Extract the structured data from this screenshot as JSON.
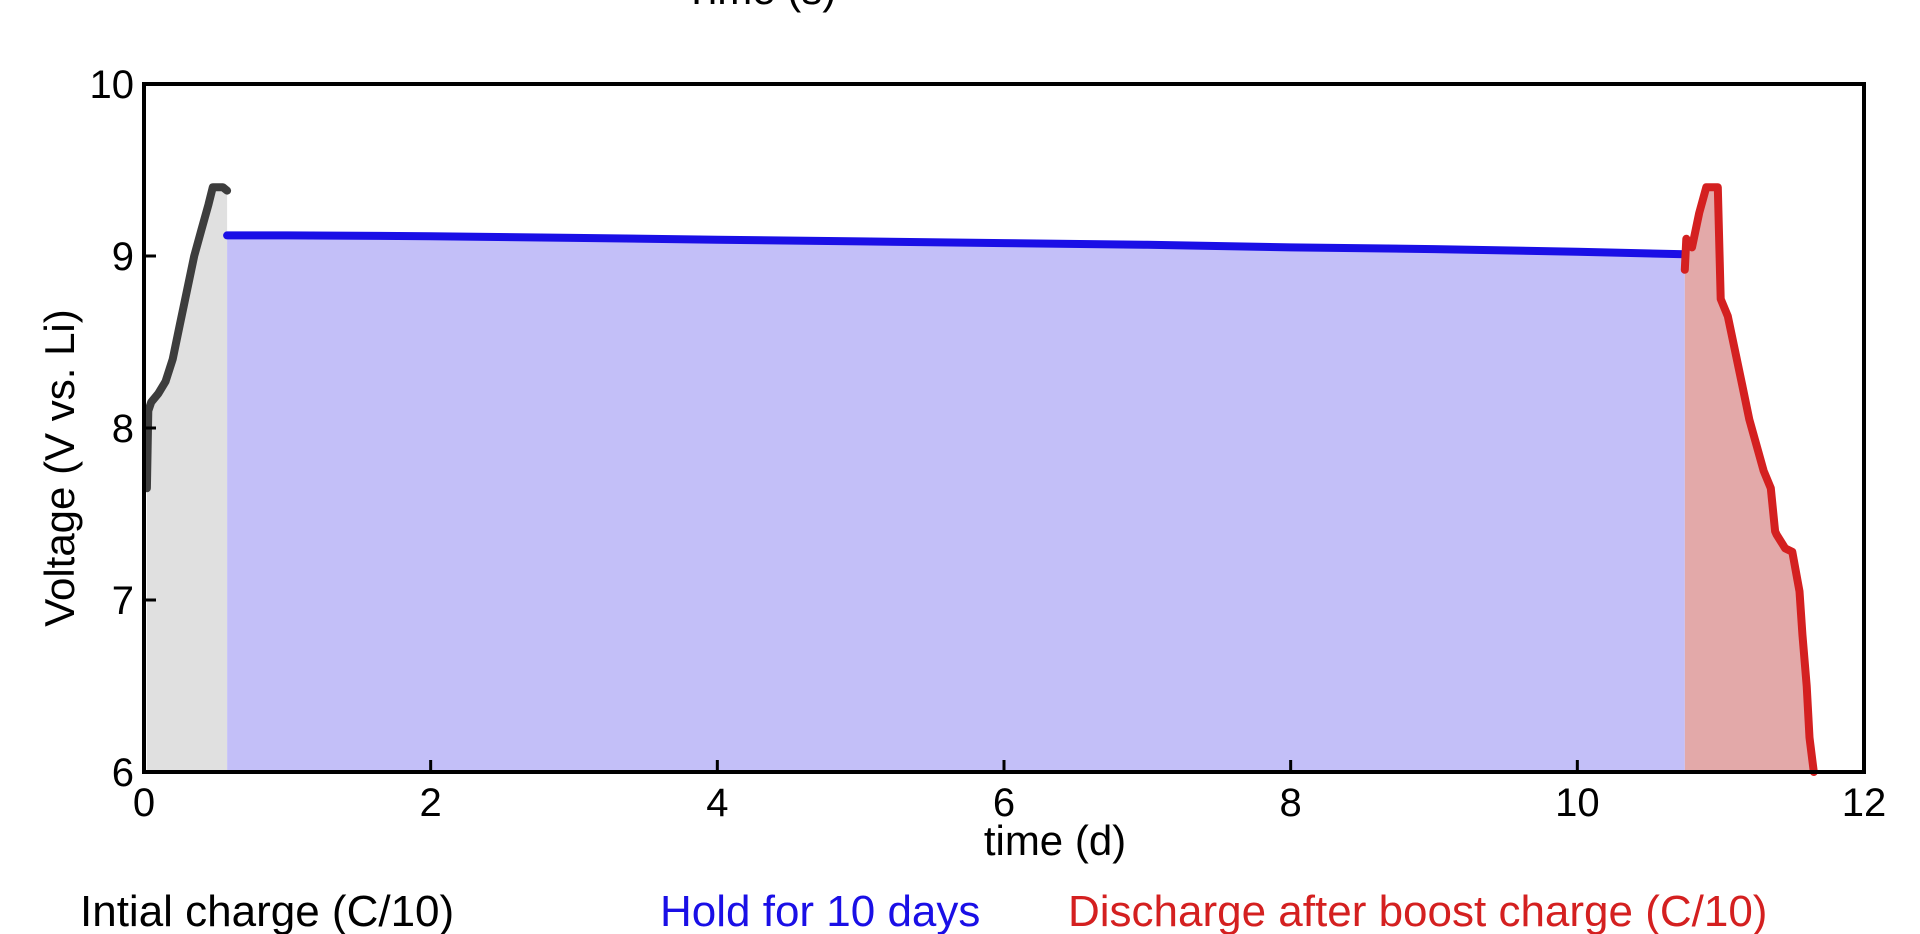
{
  "chart_data": {
    "type": "line",
    "top_cutoff_title": "Time (s)",
    "xlabel": "time (d)",
    "ylabel": "Voltage (V vs. Li)",
    "xlim": [
      0,
      12
    ],
    "ylim": [
      6,
      10
    ],
    "xticks": [
      "0",
      "2",
      "4",
      "6",
      "8",
      "10",
      "12"
    ],
    "yticks": [
      "6",
      "7",
      "8",
      "9",
      "10"
    ],
    "grid": false,
    "legend_placement": "bottom",
    "series": [
      {
        "name": "Intial charge (C/10)",
        "color": "#3d3d3d",
        "fill": "#e0e0e0",
        "x": [
          0.02,
          0.03,
          0.05,
          0.1,
          0.15,
          0.2,
          0.25,
          0.3,
          0.35,
          0.4,
          0.45,
          0.48,
          0.5,
          0.55,
          0.58
        ],
        "y": [
          7.65,
          8.1,
          8.15,
          8.2,
          8.27,
          8.4,
          8.6,
          8.8,
          9.0,
          9.15,
          9.3,
          9.4,
          9.4,
          9.4,
          9.38
        ]
      },
      {
        "name": "Hold for 10 days",
        "color": "#1a0fe6",
        "fill": "#c3bff8",
        "x": [
          0.58,
          1,
          2,
          3,
          4,
          5,
          6,
          7,
          8,
          9,
          10,
          10.75
        ],
        "y": [
          9.12,
          9.12,
          9.115,
          9.105,
          9.095,
          9.085,
          9.075,
          9.065,
          9.05,
          9.04,
          9.025,
          9.01
        ]
      },
      {
        "name": "Discharge after boost charge (C/10)",
        "color": "#d42020",
        "fill": "#e3a9a9",
        "x": [
          10.75,
          10.76,
          10.8,
          10.85,
          10.9,
          10.92,
          10.98,
          11.0,
          11.05,
          11.1,
          11.15,
          11.2,
          11.25,
          11.3,
          11.35,
          11.38,
          11.39,
          11.45,
          11.5,
          11.55,
          11.57,
          11.6,
          11.62,
          11.65
        ],
        "y": [
          8.92,
          9.1,
          9.05,
          9.25,
          9.4,
          9.4,
          9.4,
          8.75,
          8.65,
          8.45,
          8.25,
          8.05,
          7.9,
          7.75,
          7.65,
          7.4,
          7.38,
          7.3,
          7.28,
          7.05,
          6.8,
          6.5,
          6.2,
          6.0
        ]
      }
    ]
  }
}
